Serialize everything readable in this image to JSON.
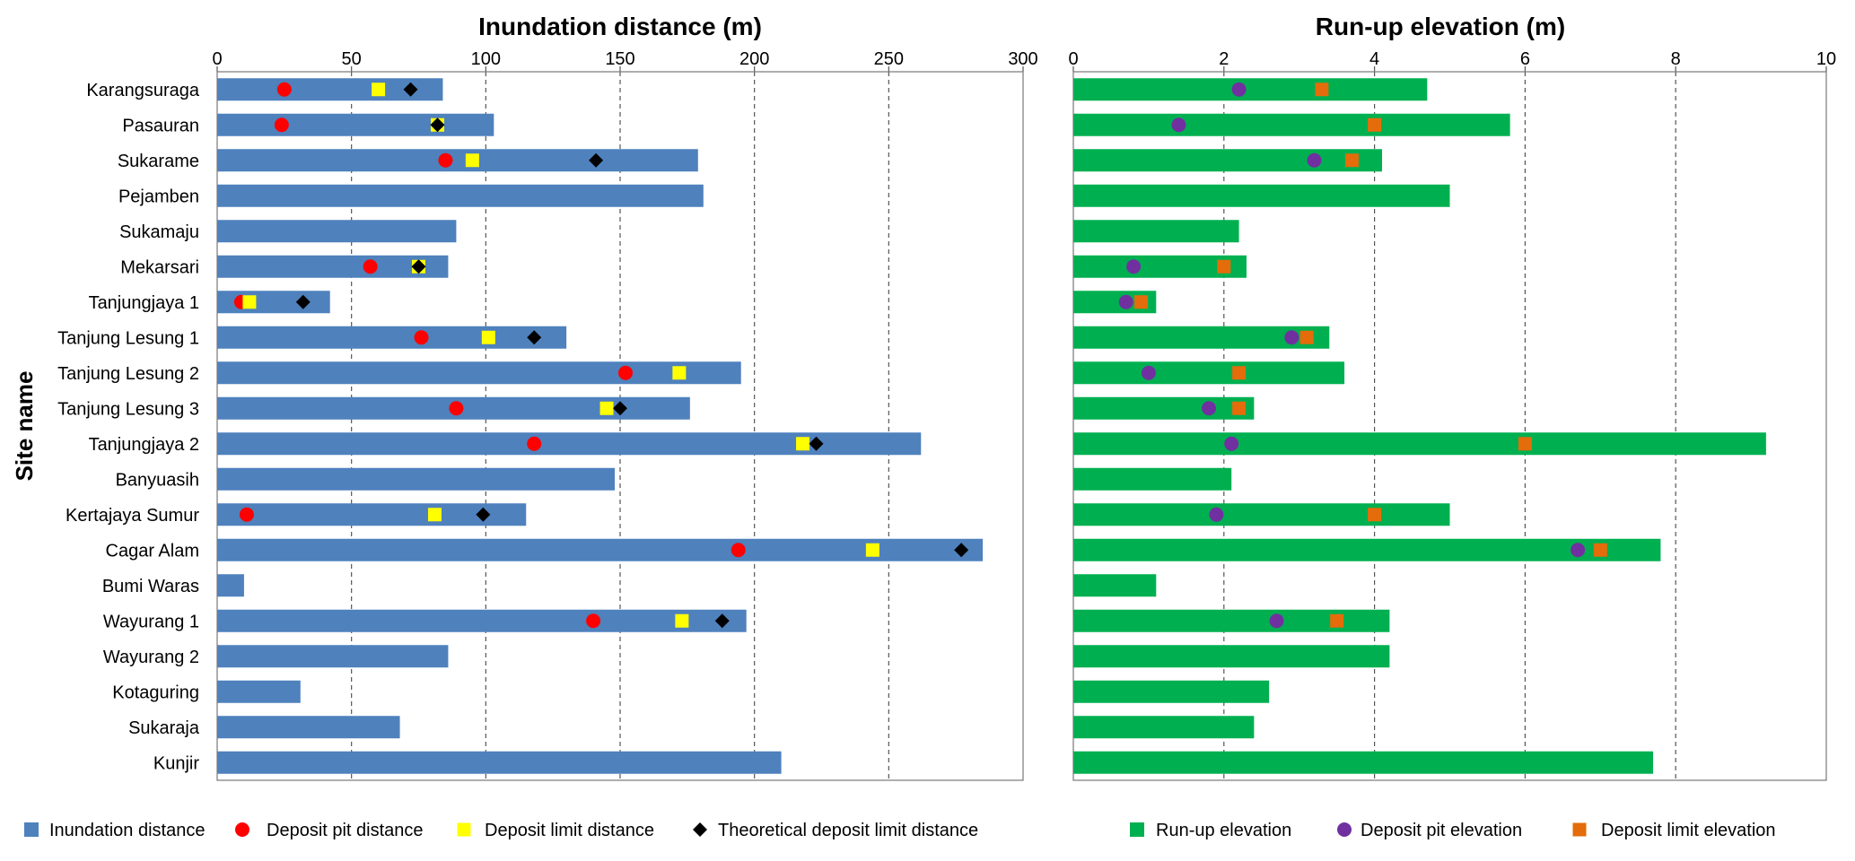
{
  "chart_data": [
    {
      "type": "bar",
      "orientation": "horizontal",
      "title": "Inundation distance (m)",
      "ylabel": "Site name",
      "xlim": [
        0,
        300
      ],
      "xticks": [
        0,
        50,
        100,
        150,
        200,
        250,
        300
      ],
      "grid": "vertical-dashed",
      "legend": "bottom",
      "categories": [
        "Karangsuraga",
        "Pasauran",
        "Sukarame",
        "Pejamben",
        "Sukamaju",
        "Mekarsari",
        "Tanjungjaya 1",
        "Tanjung Lesung 1",
        "Tanjung Lesung 2",
        "Tanjung Lesung 3",
        "Tanjungjaya 2",
        "Banyuasih",
        "Kertajaya Sumur",
        "Cagar Alam",
        "Bumi Waras",
        "Wayurang 1",
        "Wayurang 2",
        "Kotaguring",
        "Sukaraja",
        "Kunjir"
      ],
      "series": [
        {
          "name": "Inundation distance",
          "kind": "bar",
          "color": "#4f81bd",
          "values": [
            84,
            103,
            179,
            181,
            89,
            86,
            42,
            130,
            195,
            176,
            262,
            148,
            115,
            285,
            10,
            197,
            86,
            31,
            68,
            210
          ]
        },
        {
          "name": "Deposit pit distance",
          "kind": "circle",
          "color": "#ff0000",
          "values": [
            25,
            24,
            85,
            null,
            null,
            57,
            9,
            76,
            152,
            89,
            118,
            null,
            11,
            194,
            null,
            140,
            null,
            null,
            null,
            null
          ]
        },
        {
          "name": "Deposit limit distance",
          "kind": "square",
          "color": "#ffff00",
          "values": [
            60,
            82,
            95,
            null,
            null,
            75,
            12,
            101,
            172,
            145,
            218,
            null,
            81,
            244,
            null,
            173,
            null,
            null,
            null,
            null
          ]
        },
        {
          "name": "Theoretical deposit limit distance",
          "kind": "diamond",
          "color": "#000000",
          "values": [
            72,
            82,
            141,
            null,
            null,
            75,
            32,
            118,
            null,
            150,
            223,
            null,
            99,
            277,
            null,
            188,
            null,
            null,
            null,
            null
          ]
        }
      ]
    },
    {
      "type": "bar",
      "orientation": "horizontal",
      "title": "Run-up elevation (m)",
      "xlim": [
        0,
        10
      ],
      "xticks": [
        0,
        2,
        4,
        6,
        8,
        10
      ],
      "grid": "vertical-dashed",
      "legend": "bottom",
      "categories": [
        "Karangsuraga",
        "Pasauran",
        "Sukarame",
        "Pejamben",
        "Sukamaju",
        "Mekarsari",
        "Tanjungjaya 1",
        "Tanjung Lesung 1",
        "Tanjung Lesung 2",
        "Tanjung Lesung 3",
        "Tanjungjaya 2",
        "Banyuasih",
        "Kertajaya Sumur",
        "Cagar Alam",
        "Bumi Waras",
        "Wayurang 1",
        "Wayurang 2",
        "Kotaguring",
        "Sukaraja",
        "Kunjir"
      ],
      "series": [
        {
          "name": "Run-up elevation",
          "kind": "bar",
          "color": "#00b050",
          "values": [
            4.7,
            5.8,
            4.1,
            5.0,
            2.2,
            2.3,
            1.1,
            3.4,
            3.6,
            2.4,
            9.2,
            2.1,
            5.0,
            7.8,
            1.1,
            4.2,
            4.2,
            2.6,
            2.4,
            7.7
          ]
        },
        {
          "name": "Deposit pit elevation",
          "kind": "circle",
          "color": "#7030a0",
          "values": [
            2.2,
            1.4,
            3.2,
            null,
            null,
            0.8,
            0.7,
            2.9,
            1.0,
            1.8,
            2.1,
            null,
            1.9,
            6.7,
            null,
            2.7,
            null,
            null,
            null,
            null
          ]
        },
        {
          "name": "Deposit limit elevation",
          "kind": "square",
          "color": "#e46c0a",
          "values": [
            3.3,
            4.0,
            3.7,
            null,
            null,
            2.0,
            0.9,
            3.1,
            2.2,
            2.2,
            6.0,
            null,
            4.0,
            7.0,
            null,
            3.5,
            null,
            null,
            null,
            null
          ]
        }
      ]
    }
  ]
}
